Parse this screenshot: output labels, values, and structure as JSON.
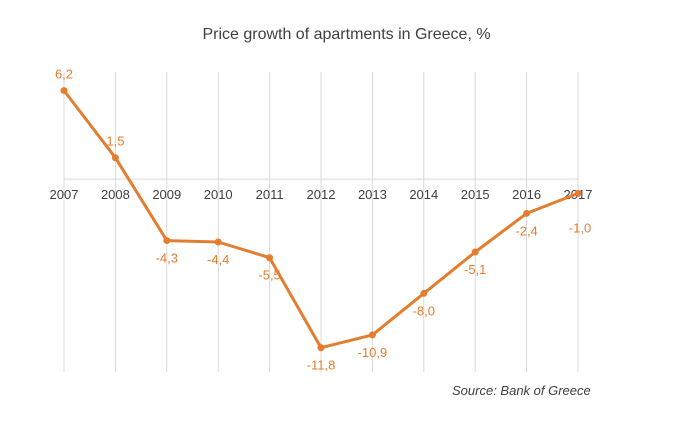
{
  "chart_data": {
    "type": "line",
    "title": "Price growth of apartments in Greece, %",
    "categories": [
      "2007",
      "2008",
      "2009",
      "2010",
      "2011",
      "2012",
      "2013",
      "2014",
      "2015",
      "2016",
      "2017"
    ],
    "series": [
      {
        "values": [
          6.2,
          1.5,
          -4.3,
          -4.4,
          -5.5,
          -11.8,
          -10.9,
          -8.0,
          -5.1,
          -2.4,
          -1.0
        ],
        "labels": [
          "6,2",
          "1,5",
          "-4,3",
          "-4,4",
          "-5,5",
          "-11,8",
          "-10,9",
          "-8,0",
          "-5,1",
          "-2,4",
          "-1,0"
        ],
        "color": "#e37e30"
      }
    ],
    "ylim": [
      -13.5,
      7.5
    ],
    "grid": "vertical",
    "legend": "none",
    "source": "Source: Bank of Greece"
  }
}
